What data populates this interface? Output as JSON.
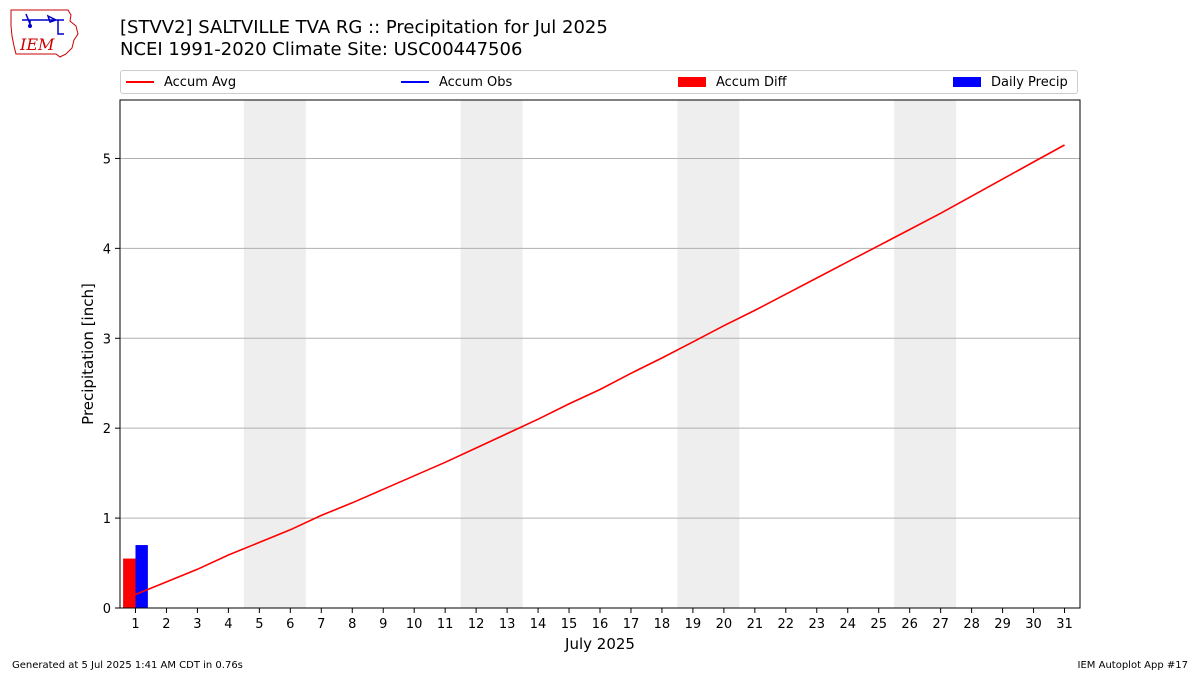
{
  "header": {
    "title_line1": "[STVV2] SALTVILLE TVA RG :: Precipitation for Jul 2025",
    "title_line2": "NCEI 1991-2020 Climate Site: USC00447506"
  },
  "logo": {
    "text": "IEM"
  },
  "legend": {
    "accum_avg": "Accum Avg",
    "accum_obs": "Accum Obs",
    "accum_diff": "Accum Diff",
    "daily_precip": "Daily Precip"
  },
  "footer": {
    "left": "Generated at 5 Jul 2025 1:41 AM CDT in 0.76s",
    "right": "IEM Autoplot App #17"
  },
  "colors": {
    "accum_avg": "#ff0000",
    "accum_obs": "#0000ff",
    "accum_diff": "#ff0000",
    "daily_precip": "#0000ff",
    "weekend_band": "#eeeeee",
    "grid": "#b0b0b0"
  },
  "chart_data": {
    "type": "line",
    "xlabel": "July 2025",
    "ylabel": "Precipitation [inch]",
    "x": [
      1,
      2,
      3,
      4,
      5,
      6,
      7,
      8,
      9,
      10,
      11,
      12,
      13,
      14,
      15,
      16,
      17,
      18,
      19,
      20,
      21,
      22,
      23,
      24,
      25,
      26,
      27,
      28,
      29,
      30,
      31
    ],
    "xlim": [
      0.5,
      31.5
    ],
    "ylim": [
      0,
      5.65
    ],
    "yticks": [
      0,
      1,
      2,
      3,
      4,
      5
    ],
    "grid": "horizontal",
    "legend_position": "top",
    "weekend_bands": [
      [
        5,
        6
      ],
      [
        12,
        13
      ],
      [
        19,
        20
      ],
      [
        26,
        27
      ]
    ],
    "series": [
      {
        "name": "Accum Avg",
        "type": "line",
        "values": [
          0.15,
          0.29,
          0.43,
          0.59,
          0.73,
          0.87,
          1.03,
          1.17,
          1.32,
          1.47,
          1.62,
          1.78,
          1.94,
          2.1,
          2.27,
          2.43,
          2.61,
          2.78,
          2.96,
          3.14,
          3.31,
          3.49,
          3.67,
          3.85,
          4.03,
          4.21,
          4.39,
          4.58,
          4.77,
          4.96,
          5.15
        ]
      },
      {
        "name": "Accum Diff",
        "type": "bar",
        "x": [
          1
        ],
        "values": [
          0.55
        ]
      },
      {
        "name": "Daily Precip",
        "type": "bar",
        "x": [
          1
        ],
        "values": [
          0.7
        ]
      }
    ]
  }
}
